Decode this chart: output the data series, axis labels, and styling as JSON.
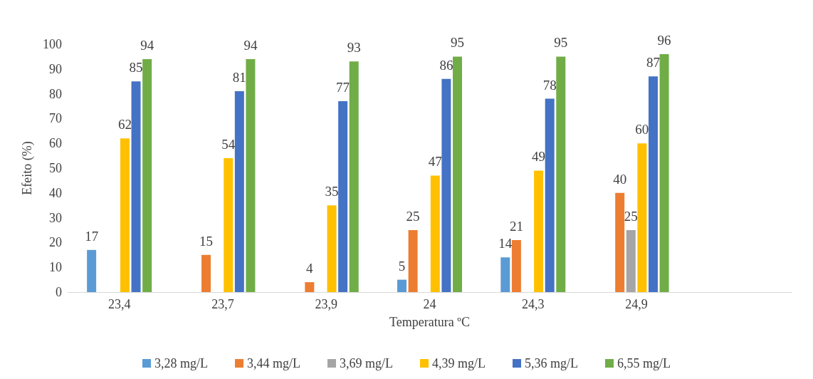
{
  "chart_data": {
    "type": "bar",
    "xlabel": "Temperatura ºC",
    "ylabel": "Efeito (%)",
    "categories": [
      "23,4",
      "23,7",
      "23,9",
      "24",
      "24,3",
      "24,9",
      null
    ],
    "series": [
      {
        "name": "3,28 mg/L",
        "color": "#5b9bd5",
        "values": [
          17,
          null,
          null,
          5,
          14,
          null,
          null
        ]
      },
      {
        "name": "3,44 mg/L",
        "color": "#ed7d31",
        "values": [
          null,
          15,
          4,
          25,
          21,
          40,
          null
        ]
      },
      {
        "name": "3,69 mg/L",
        "color": "#a5a5a5",
        "values": [
          null,
          null,
          null,
          null,
          null,
          25,
          null
        ]
      },
      {
        "name": "4,39 mg/L",
        "color": "#ffc000",
        "values": [
          62,
          54,
          35,
          47,
          49,
          60,
          null
        ]
      },
      {
        "name": "5,36 mg/L",
        "color": "#4472c4",
        "values": [
          85,
          81,
          77,
          86,
          78,
          87,
          null
        ]
      },
      {
        "name": "6,55 mg/L",
        "color": "#70ad47",
        "values": [
          94,
          94,
          93,
          95,
          95,
          96,
          null
        ]
      }
    ],
    "ylim": [
      0,
      100
    ],
    "yticks": [
      0,
      10,
      20,
      30,
      40,
      50,
      60,
      70,
      80,
      90,
      100
    ],
    "data_labels": true,
    "grid": false,
    "legend": "bottom"
  }
}
